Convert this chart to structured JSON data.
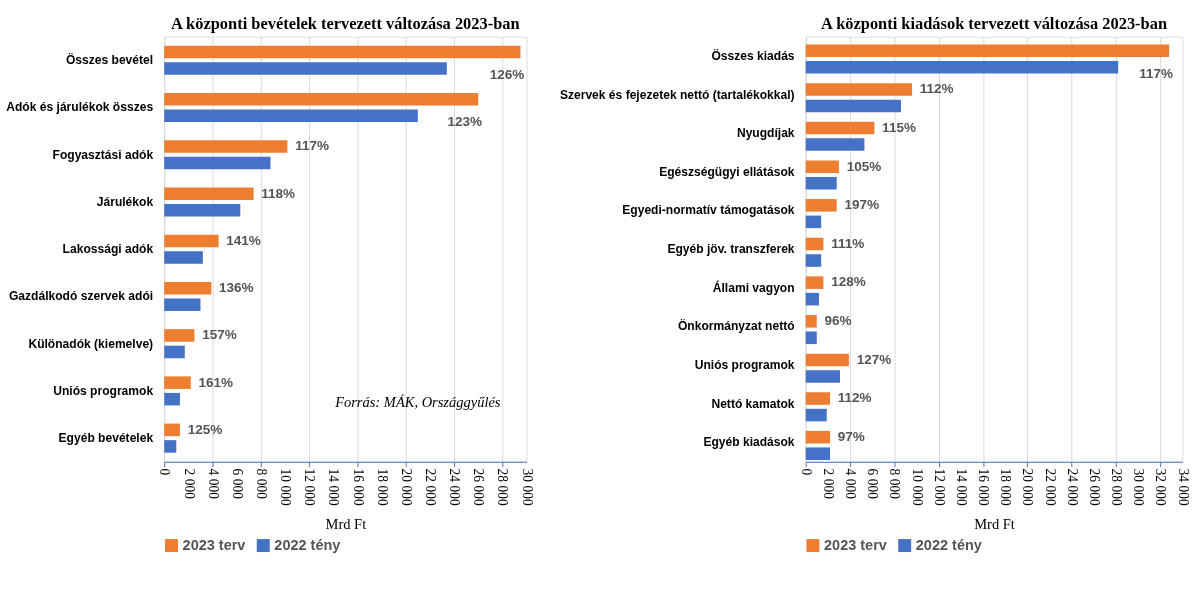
{
  "chart_data": [
    {
      "type": "bar",
      "orientation": "horizontal",
      "title": "A központi bevételek tervezett változása 2023-ban",
      "xlabel": "Mrd Ft",
      "categories": [
        "Összes bevétel",
        "Adók és járulékok összes",
        "Fogyasztási adók",
        "Járulékok",
        "Lakossági adók",
        "Gazdálkodó szervek adói",
        "Különadók (kiemelve)",
        "Uniós programok",
        "Egyéb bevételek"
      ],
      "series": [
        {
          "name": "2023 terv",
          "color": "#ed7d31",
          "values": [
            29500,
            26000,
            10200,
            7400,
            4500,
            3900,
            2500,
            2200,
            1300
          ]
        },
        {
          "name": "2022 tény",
          "color": "#4472c4",
          "values": [
            23400,
            21000,
            8800,
            6300,
            3200,
            3000,
            1700,
            1300,
            1000
          ]
        }
      ],
      "xlim": [
        0,
        30000
      ],
      "xticks": [
        0,
        {
          "value": 2000,
          "label": "2 000"
        },
        {
          "value": 4000,
          "label": "4 000"
        },
        {
          "value": 6000,
          "label": "6 000"
        },
        {
          "value": 8000,
          "label": "8 000"
        },
        {
          "value": 10000,
          "label": "10 000"
        },
        {
          "value": 12000,
          "label": "12 000"
        },
        {
          "value": 14000,
          "label": "14 000"
        },
        {
          "value": 16000,
          "label": "16 000"
        },
        {
          "value": 18000,
          "label": "18 000"
        },
        {
          "value": 20000,
          "label": "20 000"
        },
        {
          "value": 22000,
          "label": "22 000"
        },
        {
          "value": 24000,
          "label": "24 000"
        },
        {
          "value": 26000,
          "label": "26 000"
        },
        {
          "value": 28000,
          "label": "28 000"
        },
        {
          "value": 30000,
          "label": "30 000"
        }
      ],
      "grid": "x",
      "legend": "bottom left",
      "annotations": [
        {
          "text": "126%",
          "x": 29500,
          "y": "Összes bevétel"
        },
        {
          "text": "123%",
          "x": 26000,
          "y": "Adók és járulékok összes"
        },
        {
          "text": "117%",
          "x": 10200,
          "y": "Fogyasztási adók"
        },
        {
          "text": "118%",
          "x": 7400,
          "y": "Járulékok"
        },
        {
          "text": "141%",
          "x": 4500,
          "y": "Lakossági adók"
        },
        {
          "text": "136%",
          "x": 3900,
          "y": "Gazdálkodó szervek adói"
        },
        {
          "text": "157%",
          "x": 2500,
          "y": "Különadók (kiemelve)"
        },
        {
          "text": "161%",
          "x": 2200,
          "y": "Uniós programok"
        },
        {
          "text": "125%",
          "x": 1300,
          "y": "Egyéb bevételek"
        },
        "Forrás: MÁK, Országgyűlés"
      ]
    },
    {
      "type": "bar",
      "orientation": "horizontal",
      "title": "A központi kiadások tervezett változása 2023-ban",
      "xlabel": "Mrd Ft",
      "categories": [
        "Összes kiadás",
        "Szervek és fejezetek nettó (tartalékokkal)",
        "Nyugdíjak",
        "Egészségügyi ellátások",
        "Egyedi-normatív támogatások",
        "Egyéb jöv. transzferek",
        "Állami vagyon",
        "Önkormányzat nettó",
        "Uniós programok",
        "Nettó kamatok",
        "Egyéb kiadások"
      ],
      "series": [
        {
          "name": "2023 terv",
          "color": "#ed7d31",
          "values": [
            32800,
            9600,
            6200,
            3000,
            2800,
            1600,
            1600,
            1000,
            3900,
            2200,
            2200
          ]
        },
        {
          "name": "2022 tény",
          "color": "#4472c4",
          "values": [
            28200,
            8600,
            5300,
            2800,
            1400,
            1400,
            1200,
            1000,
            3100,
            1900,
            2200
          ]
        }
      ],
      "xlim": [
        0,
        34000
      ],
      "xticks": [
        0,
        {
          "value": 2000,
          "label": "2 000"
        },
        {
          "value": 4000,
          "label": "4 000"
        },
        {
          "value": 6000,
          "label": "6 000"
        },
        {
          "value": 8000,
          "label": "8 000"
        },
        {
          "value": 10000,
          "label": "10 000"
        },
        {
          "value": 12000,
          "label": "12 000"
        },
        {
          "value": 14000,
          "label": "14 000"
        },
        {
          "value": 16000,
          "label": "16 000"
        },
        {
          "value": 18000,
          "label": "18 000"
        },
        {
          "value": 20000,
          "label": "20 000"
        },
        {
          "value": 22000,
          "label": "22 000"
        },
        {
          "value": 24000,
          "label": "24 000"
        },
        {
          "value": 26000,
          "label": "26 000"
        },
        {
          "value": 28000,
          "label": "28 000"
        },
        {
          "value": 30000,
          "label": "30 000"
        },
        {
          "value": 32000,
          "label": "32 000"
        },
        {
          "value": 34000,
          "label": "34 000"
        }
      ],
      "grid": "x",
      "legend": "bottom left",
      "annotations": [
        {
          "text": "117%",
          "x": 32800,
          "y": "Összes kiadás"
        },
        {
          "text": "112%",
          "x": 9600,
          "y": "Szervek és fejezetek nettó (tartalékokkal)"
        },
        {
          "text": "115%",
          "x": 6200,
          "y": "Nyugdíjak"
        },
        {
          "text": "105%",
          "x": 3000,
          "y": "Egészségügyi ellátások"
        },
        {
          "text": "197%",
          "x": 2800,
          "y": "Egyedi-normatív támogatások"
        },
        {
          "text": "111%",
          "x": 1600,
          "y": "Egyéb jöv. transzferek"
        },
        {
          "text": "128%",
          "x": 1600,
          "y": "Állami vagyon"
        },
        {
          "text": "96%",
          "x": 1000,
          "y": "Önkormányzat nettó"
        },
        {
          "text": "127%",
          "x": 3900,
          "y": "Uniós programok"
        },
        {
          "text": "112%",
          "x": 2200,
          "y": "Nettó kamatok"
        },
        {
          "text": "97%",
          "x": 2200,
          "y": "Egyéb kiadások"
        }
      ]
    }
  ]
}
